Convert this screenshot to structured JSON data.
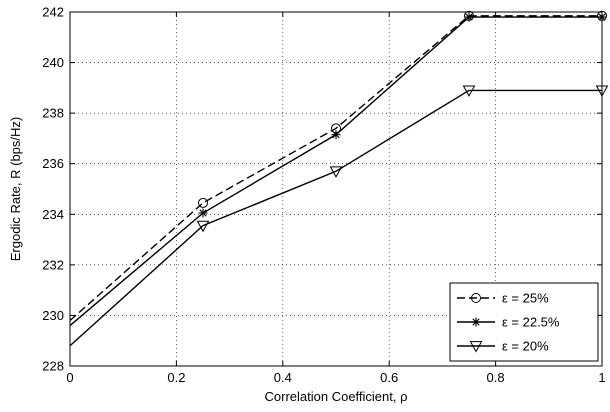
{
  "chart_data": {
    "type": "line",
    "xlabel": "Correlation Coefficient, ρ",
    "ylabel": "Ergodic Rate, R (bps/Hz)",
    "xlim": [
      0,
      1
    ],
    "ylim": [
      228,
      242
    ],
    "xticks": [
      0,
      0.2,
      0.4,
      0.6,
      0.8,
      1
    ],
    "xtick_labels": [
      "0",
      "0.2",
      "0.4",
      "0.6",
      "0.8",
      "1"
    ],
    "yticks": [
      228,
      230,
      232,
      234,
      236,
      238,
      240,
      242
    ],
    "ytick_labels": [
      "228",
      "230",
      "232",
      "234",
      "236",
      "238",
      "240",
      "242"
    ],
    "grid": true,
    "legend_position": "bottom-right",
    "x": [
      0,
      0.25,
      0.5,
      0.75,
      1
    ],
    "series": [
      {
        "name": "ε = 25%",
        "values": [
          229.8,
          234.45,
          237.4,
          241.85,
          241.85
        ],
        "line_style": "dashed",
        "marker": "circle",
        "marked_x": [
          0.25,
          0.5,
          0.75,
          1
        ]
      },
      {
        "name": "ε = 22.5%",
        "values": [
          229.6,
          234.05,
          237.15,
          241.8,
          241.8
        ],
        "line_style": "solid",
        "marker": "asterisk",
        "marked_x": [
          0.25,
          0.5,
          0.75,
          1
        ]
      },
      {
        "name": "ε = 20%",
        "values": [
          228.8,
          233.55,
          235.7,
          238.9,
          238.9
        ],
        "line_style": "solid",
        "marker": "triangle-down",
        "marked_x": [
          0.25,
          0.5,
          0.75,
          1
        ]
      }
    ]
  }
}
